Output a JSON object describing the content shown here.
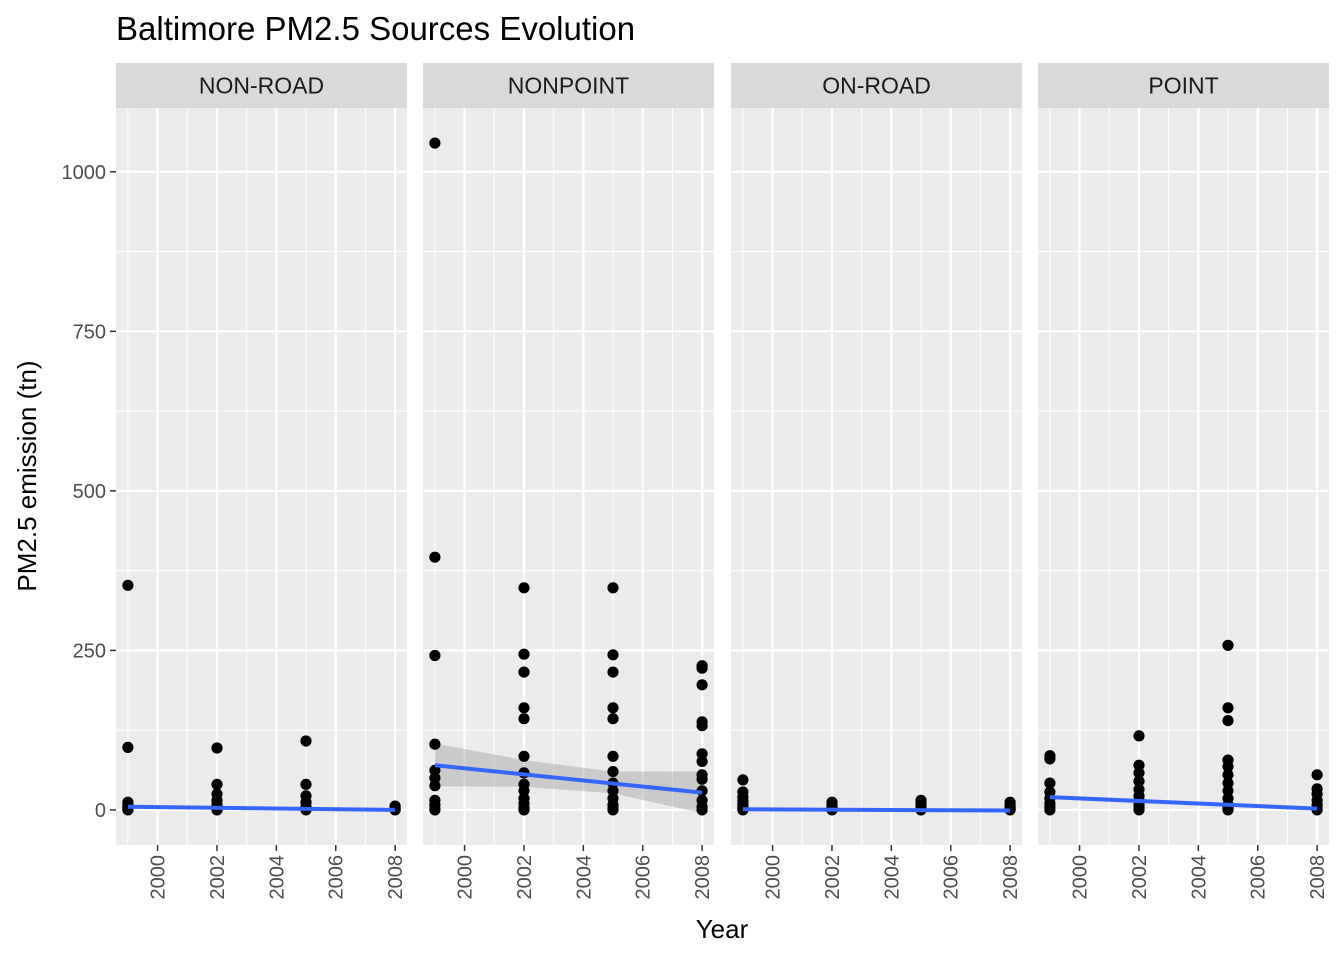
{
  "chart_data": {
    "type": "scatter",
    "title": "Baltimore PM2.5 Sources Evolution",
    "xlabel": "Year",
    "ylabel": "PM2.5 emission (tn)",
    "xlim": [
      1998.6,
      2008.4
    ],
    "ylim": [
      -55,
      1100
    ],
    "x_ticks": [
      2000,
      2002,
      2004,
      2006,
      2008
    ],
    "y_ticks": [
      0,
      250,
      500,
      750,
      1000
    ],
    "grid": true,
    "facets": [
      {
        "name": "NON-ROAD",
        "points": [
          [
            1999,
            352
          ],
          [
            1999,
            98
          ],
          [
            1999,
            12
          ],
          [
            1999,
            8
          ],
          [
            1999,
            5
          ],
          [
            1999,
            3
          ],
          [
            1999,
            1
          ],
          [
            1999,
            0
          ],
          [
            2002,
            97
          ],
          [
            2002,
            40
          ],
          [
            2002,
            25
          ],
          [
            2002,
            15
          ],
          [
            2002,
            8
          ],
          [
            2002,
            4
          ],
          [
            2002,
            1
          ],
          [
            2002,
            0
          ],
          [
            2005,
            108
          ],
          [
            2005,
            40
          ],
          [
            2005,
            22
          ],
          [
            2005,
            12
          ],
          [
            2005,
            5
          ],
          [
            2005,
            2
          ],
          [
            2005,
            0
          ],
          [
            2008,
            6
          ],
          [
            2008,
            3
          ],
          [
            2008,
            1
          ],
          [
            2008,
            0
          ]
        ],
        "trend": {
          "x": [
            1999,
            2008
          ],
          "y": [
            5,
            0
          ]
        },
        "band": null
      },
      {
        "name": "NONPOINT",
        "points": [
          [
            1999,
            1045
          ],
          [
            1999,
            396
          ],
          [
            1999,
            242
          ],
          [
            1999,
            103
          ],
          [
            1999,
            62
          ],
          [
            1999,
            50
          ],
          [
            1999,
            38
          ],
          [
            1999,
            15
          ],
          [
            1999,
            8
          ],
          [
            1999,
            2
          ],
          [
            1999,
            0
          ],
          [
            2002,
            348
          ],
          [
            2002,
            244
          ],
          [
            2002,
            216
          ],
          [
            2002,
            160
          ],
          [
            2002,
            143
          ],
          [
            2002,
            84
          ],
          [
            2002,
            58
          ],
          [
            2002,
            40
          ],
          [
            2002,
            30
          ],
          [
            2002,
            18
          ],
          [
            2002,
            10
          ],
          [
            2002,
            3
          ],
          [
            2002,
            0
          ],
          [
            2005,
            348
          ],
          [
            2005,
            243
          ],
          [
            2005,
            216
          ],
          [
            2005,
            160
          ],
          [
            2005,
            143
          ],
          [
            2005,
            84
          ],
          [
            2005,
            60
          ],
          [
            2005,
            42
          ],
          [
            2005,
            30
          ],
          [
            2005,
            18
          ],
          [
            2005,
            8
          ],
          [
            2005,
            2
          ],
          [
            2005,
            0
          ],
          [
            2008,
            226
          ],
          [
            2008,
            222
          ],
          [
            2008,
            196
          ],
          [
            2008,
            138
          ],
          [
            2008,
            132
          ],
          [
            2008,
            88
          ],
          [
            2008,
            76
          ],
          [
            2008,
            55
          ],
          [
            2008,
            48
          ],
          [
            2008,
            30
          ],
          [
            2008,
            15
          ],
          [
            2008,
            5
          ],
          [
            2008,
            0
          ]
        ],
        "trend": {
          "x": [
            1999,
            2008
          ],
          "y": [
            70,
            27
          ]
        },
        "band": {
          "x": [
            1999,
            2002,
            2005,
            2008
          ],
          "lower": [
            37,
            36,
            26,
            -5
          ],
          "upper": [
            104,
            78,
            60,
            60
          ]
        }
      },
      {
        "name": "ON-ROAD",
        "points": [
          [
            1999,
            47
          ],
          [
            1999,
            28
          ],
          [
            1999,
            20
          ],
          [
            1999,
            14
          ],
          [
            1999,
            9
          ],
          [
            1999,
            5
          ],
          [
            1999,
            2
          ],
          [
            1999,
            0
          ],
          [
            2002,
            12
          ],
          [
            2002,
            8
          ],
          [
            2002,
            5
          ],
          [
            2002,
            3
          ],
          [
            2002,
            1
          ],
          [
            2002,
            0
          ],
          [
            2005,
            15
          ],
          [
            2005,
            10
          ],
          [
            2005,
            6
          ],
          [
            2005,
            3
          ],
          [
            2005,
            1
          ],
          [
            2005,
            0
          ],
          [
            2008,
            12
          ],
          [
            2008,
            7
          ],
          [
            2008,
            4
          ],
          [
            2008,
            2
          ],
          [
            2008,
            0
          ]
        ],
        "trend": {
          "x": [
            1999,
            2008
          ],
          "y": [
            1,
            -1
          ]
        },
        "band": null
      },
      {
        "name": "POINT",
        "points": [
          [
            1999,
            85
          ],
          [
            1999,
            80
          ],
          [
            1999,
            42
          ],
          [
            1999,
            28
          ],
          [
            1999,
            18
          ],
          [
            1999,
            10
          ],
          [
            1999,
            5
          ],
          [
            1999,
            0
          ],
          [
            2002,
            116
          ],
          [
            2002,
            70
          ],
          [
            2002,
            58
          ],
          [
            2002,
            45
          ],
          [
            2002,
            32
          ],
          [
            2002,
            22
          ],
          [
            2002,
            15
          ],
          [
            2002,
            8
          ],
          [
            2002,
            3
          ],
          [
            2002,
            0
          ],
          [
            2005,
            258
          ],
          [
            2005,
            160
          ],
          [
            2005,
            140
          ],
          [
            2005,
            78
          ],
          [
            2005,
            68
          ],
          [
            2005,
            55
          ],
          [
            2005,
            42
          ],
          [
            2005,
            30
          ],
          [
            2005,
            18
          ],
          [
            2005,
            8
          ],
          [
            2005,
            2
          ],
          [
            2005,
            0
          ],
          [
            2008,
            55
          ],
          [
            2008,
            33
          ],
          [
            2008,
            25
          ],
          [
            2008,
            15
          ],
          [
            2008,
            8
          ],
          [
            2008,
            3
          ],
          [
            2008,
            0
          ]
        ],
        "trend": {
          "x": [
            1999,
            2008
          ],
          "y": [
            20,
            2
          ]
        },
        "band": null
      }
    ]
  }
}
